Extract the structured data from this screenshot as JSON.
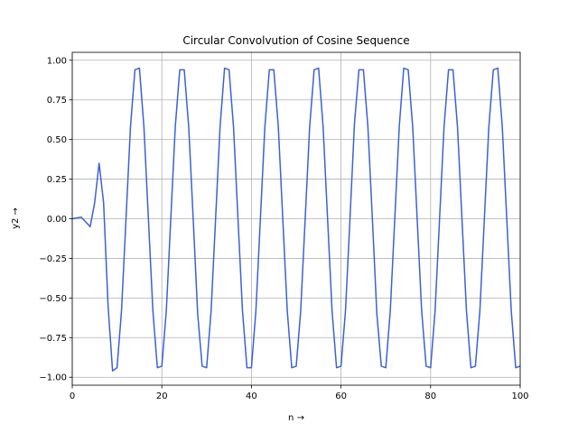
{
  "chart_data": {
    "type": "line",
    "title": "Circular Convolvution of Cosine Sequence",
    "xlabel": "n →",
    "ylabel": "y2 →",
    "xlim": [
      0,
      100
    ],
    "ylim": [
      -1.05,
      1.05
    ],
    "grid": true,
    "line_color": "#3b62d4",
    "x_ticks": [
      0,
      20,
      40,
      60,
      80,
      100
    ],
    "x_tick_labels": [
      "0",
      "20",
      "40",
      "60",
      "80",
      "100"
    ],
    "y_ticks": [
      -1.0,
      -0.75,
      -0.5,
      -0.25,
      0.0,
      0.25,
      0.5,
      0.75,
      1.0
    ],
    "y_tick_labels": [
      "−1.00",
      "−0.75",
      "−0.50",
      "−0.25",
      "0.00",
      "0.25",
      "0.50",
      "0.75",
      "1.00"
    ],
    "series": [
      {
        "x": [
          0,
          2,
          4,
          5,
          6,
          7,
          8,
          9,
          10,
          11,
          12,
          13,
          14,
          15,
          16,
          17,
          18,
          19,
          20,
          21,
          22,
          23,
          24,
          25,
          26,
          27,
          28,
          29,
          30,
          31,
          32,
          33,
          34,
          35,
          36,
          37,
          38,
          39,
          40,
          41,
          42,
          43,
          44,
          45,
          46,
          47,
          48,
          49,
          50,
          51,
          52,
          53,
          54,
          55,
          56,
          57,
          58,
          59,
          60,
          61,
          62,
          63,
          64,
          65,
          66,
          67,
          68,
          69,
          70,
          71,
          72,
          73,
          74,
          75,
          76,
          77,
          78,
          79,
          80,
          81,
          82,
          83,
          84,
          85,
          86,
          87,
          88,
          89,
          90,
          91,
          92,
          93,
          94,
          95,
          96,
          97,
          98,
          99,
          100
        ],
        "y": [
          0.0,
          0.01,
          -0.05,
          0.1,
          0.35,
          0.1,
          -0.55,
          -0.96,
          -0.94,
          -0.58,
          0.0,
          0.58,
          0.94,
          0.95,
          0.58,
          0.0,
          -0.58,
          -0.94,
          -0.93,
          -0.58,
          0.0,
          0.58,
          0.94,
          0.94,
          0.58,
          0.0,
          -0.6,
          -0.93,
          -0.94,
          -0.58,
          0.0,
          0.58,
          0.95,
          0.94,
          0.58,
          0.0,
          -0.58,
          -0.94,
          -0.94,
          -0.58,
          0.0,
          0.58,
          0.94,
          0.94,
          0.58,
          0.0,
          -0.58,
          -0.94,
          -0.93,
          -0.58,
          0.0,
          0.58,
          0.94,
          0.95,
          0.58,
          0.0,
          -0.58,
          -0.94,
          -0.93,
          -0.58,
          0.0,
          0.6,
          0.94,
          0.94,
          0.58,
          0.0,
          -0.6,
          -0.93,
          -0.94,
          -0.58,
          0.0,
          0.58,
          0.95,
          0.94,
          0.58,
          0.0,
          -0.58,
          -0.93,
          -0.94,
          -0.58,
          0.0,
          0.58,
          0.94,
          0.94,
          0.58,
          0.0,
          -0.58,
          -0.94,
          -0.93,
          -0.58,
          0.0,
          0.58,
          0.94,
          0.95,
          0.58,
          0.0,
          -0.58,
          -0.94,
          -0.93
        ]
      }
    ]
  }
}
